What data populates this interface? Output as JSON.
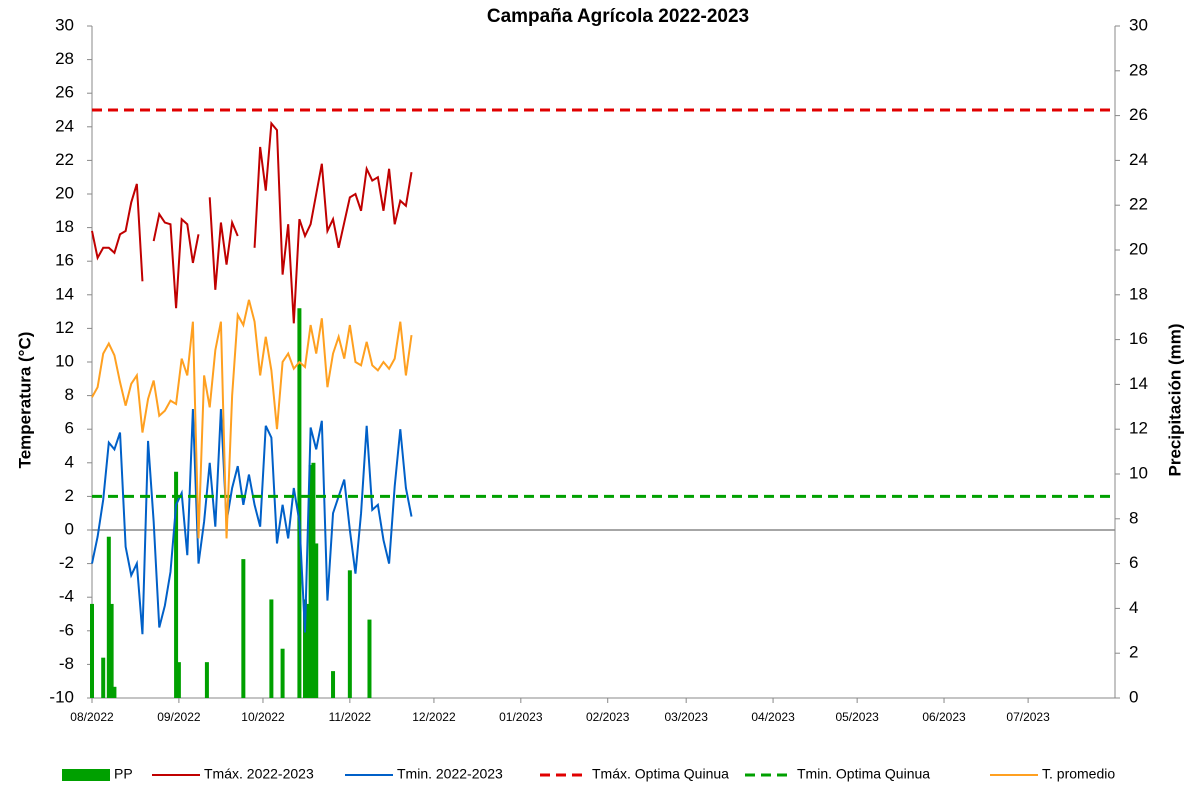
{
  "chart_data": {
    "type": "line",
    "title": "Campaña Agrícola 2022-2023",
    "y_label": "Temperatura (°C)",
    "y2_label": "Precipitación (mm)",
    "xlim": [
      0,
      365
    ],
    "xticks": [
      {
        "value": 0,
        "label": "08/2022"
      },
      {
        "value": 31,
        "label": "09/2022"
      },
      {
        "value": 61,
        "label": "10/2022"
      },
      {
        "value": 92,
        "label": "11/2022"
      },
      {
        "value": 122,
        "label": "12/2022"
      },
      {
        "value": 153,
        "label": "01/2023"
      },
      {
        "value": 184,
        "label": "02/2023"
      },
      {
        "value": 212,
        "label": "03/2023"
      },
      {
        "value": 243,
        "label": "04/2023"
      },
      {
        "value": 273,
        "label": "05/2023"
      },
      {
        "value": 304,
        "label": "06/2023"
      },
      {
        "value": 334,
        "label": "07/2023"
      }
    ],
    "ylim": [
      -10,
      30
    ],
    "yticks": [
      -10,
      -8,
      -6,
      -4,
      -2,
      0,
      2,
      4,
      6,
      8,
      10,
      12,
      14,
      16,
      18,
      20,
      22,
      24,
      26,
      28,
      30
    ],
    "y2lim": [
      0,
      30
    ],
    "y2ticks": [
      0,
      2,
      4,
      6,
      8,
      10,
      12,
      14,
      16,
      18,
      20,
      22,
      24,
      26,
      28,
      30
    ],
    "series": [
      {
        "name": "PP",
        "color": "#00a000",
        "kind": "bar",
        "axis": "y2",
        "x": [
          0,
          4,
          6,
          7,
          8,
          30,
          31,
          41,
          54,
          64,
          68,
          74,
          76,
          77,
          78,
          79,
          80,
          86,
          92,
          99
        ],
        "values": [
          4.2,
          1.8,
          7.2,
          4.2,
          0.5,
          10.1,
          1.6,
          1.6,
          6.2,
          4.4,
          2.2,
          17.4,
          4.4,
          4.2,
          10.4,
          10.5,
          6.9,
          1.2,
          5.7,
          3.5
        ]
      },
      {
        "name": "Tmáx. 2022-2023",
        "color": "#c00000",
        "kind": "line",
        "x": [
          0,
          2,
          4,
          6,
          8,
          10,
          12,
          14,
          16,
          18,
          20,
          22,
          24,
          26,
          28,
          30,
          32,
          34,
          36,
          38,
          40,
          42,
          44,
          46,
          48,
          50,
          52,
          54,
          56,
          58,
          60,
          62,
          64,
          66,
          68,
          70,
          72,
          74,
          76,
          78,
          80,
          82,
          84,
          86,
          88,
          90,
          92,
          94,
          96,
          98,
          100,
          102,
          104,
          106,
          108,
          110,
          112,
          114
        ],
        "values": [
          17.8,
          16.2,
          16.8,
          16.8,
          16.5,
          17.6,
          17.8,
          19.5,
          20.6,
          14.8,
          null,
          17.2,
          18.8,
          18.3,
          18.2,
          13.2,
          18.5,
          18.2,
          15.9,
          17.6,
          null,
          19.8,
          14.3,
          18.3,
          15.8,
          18.3,
          17.5,
          null,
          null,
          16.8,
          22.8,
          20.2,
          24.2,
          23.8,
          15.2,
          18.2,
          12.3,
          18.5,
          17.5,
          18.2,
          20,
          21.8,
          17.8,
          18.5,
          16.8,
          18.3,
          19.8,
          20,
          19,
          21.5,
          20.8,
          21,
          19,
          21.5,
          18.2,
          19.6,
          19.3,
          21.3
        ]
      },
      {
        "name": "Tmin. 2022-2023",
        "color": "#0060c8",
        "kind": "line",
        "x": [
          0,
          2,
          4,
          6,
          8,
          10,
          12,
          14,
          16,
          18,
          20,
          22,
          24,
          26,
          28,
          30,
          32,
          34,
          36,
          38,
          40,
          42,
          44,
          46,
          48,
          50,
          52,
          54,
          56,
          58,
          60,
          62,
          64,
          66,
          68,
          70,
          72,
          74,
          76,
          78,
          80,
          82,
          84,
          86,
          88,
          90,
          92,
          94,
          96,
          98,
          100,
          102,
          104,
          106,
          108,
          110,
          112,
          114
        ],
        "values": [
          -2,
          -0.4,
          1.8,
          5.2,
          4.8,
          5.8,
          -1,
          -2.7,
          -2,
          -6.2,
          5.3,
          0.5,
          -5.8,
          -4.5,
          -2.5,
          1.5,
          2.2,
          -1.5,
          7.2,
          -2,
          0.5,
          4,
          0.2,
          7.2,
          0.5,
          2.5,
          3.8,
          1.5,
          3.3,
          1.5,
          0.2,
          6.2,
          5.5,
          -0.8,
          1.5,
          -0.5,
          2.5,
          0.5,
          -6.1,
          6.1,
          4.8,
          6.5,
          -4.2,
          1,
          2,
          3,
          0,
          -2.6,
          1,
          6.2,
          1.2,
          1.5,
          -0.6,
          -2,
          2.6,
          6,
          2.5,
          0.8
        ]
      },
      {
        "name": "Tmáx. Optima Quinua",
        "color": "#e00000",
        "kind": "line",
        "dash": true,
        "x": [
          0,
          365
        ],
        "values": [
          25,
          25
        ]
      },
      {
        "name": "Tmin. Optima Quinua",
        "color": "#00a000",
        "kind": "line",
        "dash": true,
        "x": [
          0,
          365
        ],
        "values": [
          2,
          2
        ]
      },
      {
        "name": "T. promedio",
        "color": "#ffa020",
        "kind": "line",
        "x": [
          0,
          2,
          4,
          6,
          8,
          10,
          12,
          14,
          16,
          18,
          20,
          22,
          24,
          26,
          28,
          30,
          32,
          34,
          36,
          38,
          40,
          42,
          44,
          46,
          48,
          50,
          52,
          54,
          56,
          58,
          60,
          62,
          64,
          66,
          68,
          70,
          72,
          74,
          76,
          78,
          80,
          82,
          84,
          86,
          88,
          90,
          92,
          94,
          96,
          98,
          100,
          102,
          104,
          106,
          108,
          110,
          112,
          114
        ],
        "values": [
          7.9,
          8.5,
          10.5,
          11.1,
          10.4,
          8.8,
          7.4,
          8.7,
          9.2,
          5.8,
          7.8,
          8.9,
          6.8,
          7.1,
          7.7,
          7.5,
          10.2,
          9.2,
          12.4,
          -0.5,
          9.2,
          7.3,
          10.7,
          12.4,
          -0.5,
          8,
          12.8,
          12.2,
          13.7,
          12.4,
          9.2,
          11.5,
          9.5,
          6,
          10,
          10.5,
          9.6,
          10,
          9.7,
          12.2,
          10.5,
          12.6,
          8.5,
          10.5,
          11.5,
          10.2,
          12.2,
          10,
          9.8,
          11.2,
          9.8,
          9.5,
          10,
          9.6,
          10.2,
          12.4,
          9.2,
          11.6
        ]
      }
    ]
  }
}
